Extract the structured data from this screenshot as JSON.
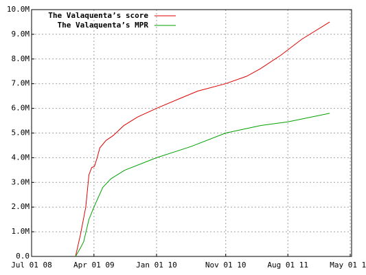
{
  "chart_data": {
    "type": "line",
    "x_type": "date",
    "series": [
      {
        "name": "The Valaquenta’s score",
        "color": "#e00000",
        "x": [
          "2009-01-10",
          "2009-02-01",
          "2009-02-24",
          "2009-03-10",
          "2009-03-22",
          "2009-04-03",
          "2009-04-15",
          "2009-04-27",
          "2009-05-24",
          "2009-06-25",
          "2009-08-10",
          "2009-10-10",
          "2010-01-01",
          "2010-04-01",
          "2010-07-01",
          "2010-11-01",
          "2011-02-01",
          "2011-04-01",
          "2011-07-01",
          "2011-10-01",
          "2012-02-01"
        ],
        "values": [
          0,
          900000,
          2000000,
          3300000,
          3600000,
          3650000,
          4000000,
          4400000,
          4700000,
          4900000,
          5300000,
          5650000,
          6000000,
          6350000,
          6700000,
          7000000,
          7300000,
          7600000,
          8150000,
          8800000,
          9500000
        ]
      },
      {
        "name": "The Valaquenta’s MPR",
        "color": "#00a000",
        "x": [
          "2009-01-10",
          "2009-02-01",
          "2009-02-15",
          "2009-03-10",
          "2009-04-01",
          "2009-05-10",
          "2009-06-15",
          "2009-08-15",
          "2010-01-01",
          "2010-06-01",
          "2010-11-01",
          "2011-04-01",
          "2011-08-01",
          "2012-02-01"
        ],
        "values": [
          0,
          350000,
          600000,
          1500000,
          2000000,
          2800000,
          3150000,
          3500000,
          4000000,
          4450000,
          5000000,
          5300000,
          5450000,
          5800000
        ]
      }
    ],
    "xlim": [
      "2008-07-01",
      "2012-05-07"
    ],
    "xticks": [
      {
        "value": "2008-07-01",
        "label": "Jul 01 08"
      },
      {
        "value": "2009-04-01",
        "label": "Apr 01 09"
      },
      {
        "value": "2010-01-01",
        "label": "Jan 01 10"
      },
      {
        "value": "2010-11-01",
        "label": "Nov 01 10"
      },
      {
        "value": "2011-08-01",
        "label": "Aug 01 11"
      },
      {
        "value": "2012-05-01",
        "label": "May 01 12"
      }
    ],
    "ylim": [
      0,
      10000000
    ],
    "yticks": [
      {
        "value": 0,
        "label": "0.0"
      },
      {
        "value": 1000000,
        "label": "1.0M"
      },
      {
        "value": 2000000,
        "label": "2.0M"
      },
      {
        "value": 3000000,
        "label": "3.0M"
      },
      {
        "value": 4000000,
        "label": "4.0M"
      },
      {
        "value": 5000000,
        "label": "5.0M"
      },
      {
        "value": 6000000,
        "label": "6.0M"
      },
      {
        "value": 7000000,
        "label": "7.0M"
      },
      {
        "value": 8000000,
        "label": "8.0M"
      },
      {
        "value": 9000000,
        "label": "9.0M"
      },
      {
        "value": 10000000,
        "label": "10.0M"
      }
    ],
    "grid": true,
    "legend": "top-left"
  }
}
